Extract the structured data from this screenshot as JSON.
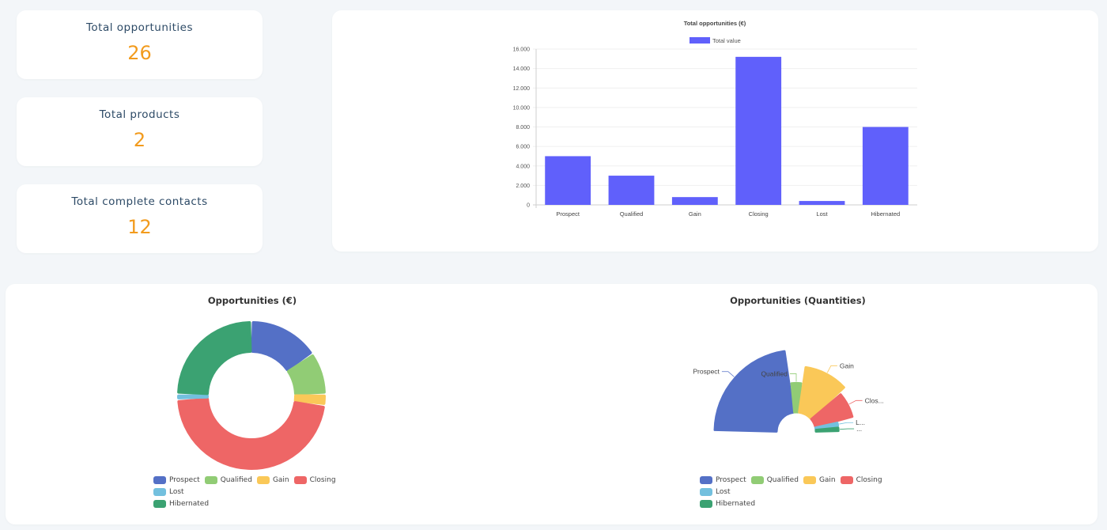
{
  "stats": [
    {
      "label": "Total opportunities",
      "value": "26"
    },
    {
      "label": "Total products",
      "value": "2"
    },
    {
      "label": "Total complete contacts",
      "value": "12"
    }
  ],
  "colors": {
    "bar": "#6060fb",
    "stat_value": "#f29b1d",
    "prospect": "#5470c6",
    "qualified": "#91cc75",
    "gain": "#fac858",
    "closing": "#ee6666",
    "lost": "#73c0de",
    "hibernated": "#3ba272"
  },
  "chart_data": [
    {
      "type": "bar",
      "title": "Total opportunities (€)",
      "legend": "Total value",
      "legend_position": "top-center",
      "categories": [
        "Prospect",
        "Qualified",
        "Gain",
        "Closing",
        "Lost",
        "Hibernated"
      ],
      "values": [
        5000,
        3000,
        800,
        15200,
        400,
        8000
      ],
      "yticks": [
        "0",
        "2.000",
        "4.000",
        "6.000",
        "8.000",
        "10.000",
        "12.000",
        "14.000",
        "16.000"
      ],
      "ylim": [
        0,
        16000
      ],
      "grid": true
    },
    {
      "type": "pie",
      "variant": "donut",
      "title": "Opportunities (€)",
      "categories": [
        "Prospect",
        "Qualified",
        "Gain",
        "Closing",
        "Lost",
        "Hibernated"
      ],
      "values": [
        5000,
        3000,
        800,
        15200,
        400,
        8000
      ],
      "legend_position": "bottom"
    },
    {
      "type": "pie",
      "variant": "half-rose",
      "title": "Opportunities (Quantities)",
      "categories": [
        "Prospect",
        "Qualified",
        "Gain",
        "Closing",
        "Lost",
        "Hibernated"
      ],
      "labels": [
        "Prospect",
        "Qualified",
        "Gain",
        "Clos...",
        "L...",
        "..."
      ],
      "values": [
        12,
        2,
        6,
        4,
        1,
        1
      ],
      "legend_position": "bottom"
    }
  ]
}
